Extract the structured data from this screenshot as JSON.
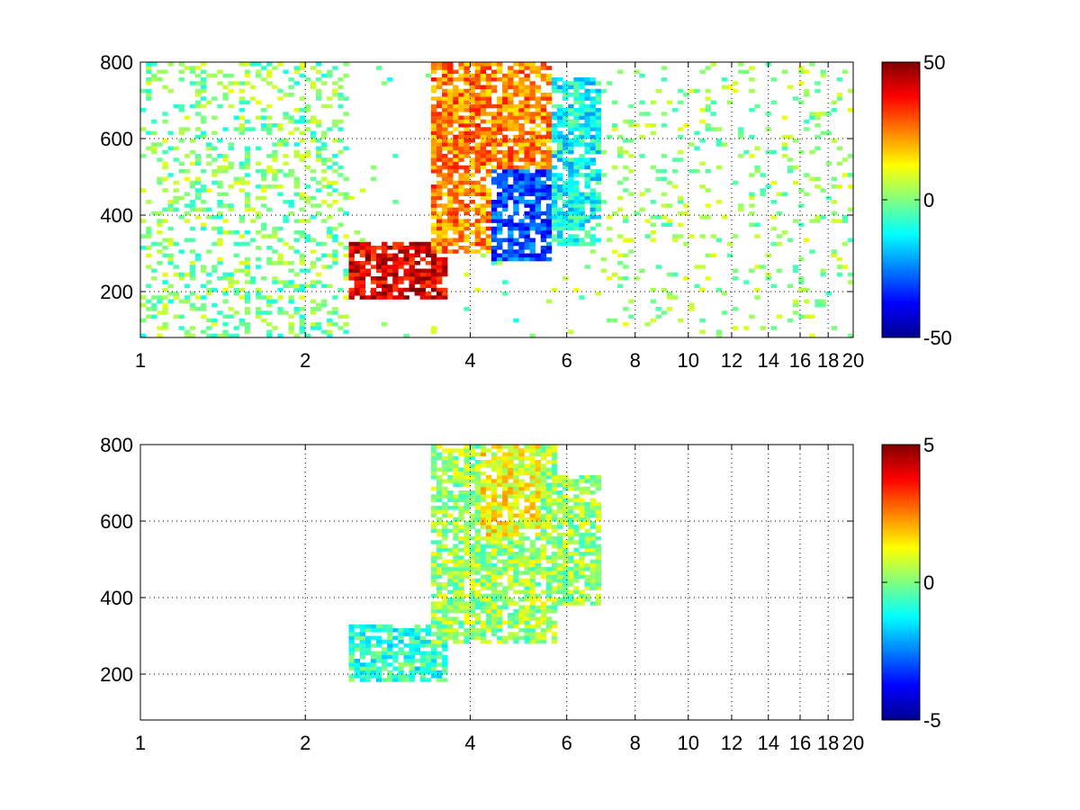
{
  "chart_data": [
    {
      "type": "heatmap",
      "title": "",
      "xlabel": "",
      "ylabel": "",
      "x_scale": "log",
      "xlim": [
        1,
        20
      ],
      "ylim": [
        80,
        800
      ],
      "x_ticks": [
        1,
        2,
        4,
        6,
        8,
        10,
        12,
        14,
        16,
        18,
        20
      ],
      "x_tick_labels": [
        "1",
        "2",
        "4",
        "6",
        "8",
        "10",
        "12",
        "14",
        "16",
        "18",
        "20"
      ],
      "y_ticks": [
        200,
        400,
        600,
        800
      ],
      "y_tick_labels": [
        "200",
        "400",
        "600",
        "800"
      ],
      "grid": true,
      "colormap": "jet",
      "clim": [
        -50,
        50
      ],
      "colorbar_ticks": [
        50,
        0,
        -50
      ],
      "colorbar_tick_labels": [
        "50",
        "0",
        "-50"
      ],
      "regions": [
        {
          "x": [
            2.4,
            3.6
          ],
          "y": [
            180,
            330
          ],
          "value": 40,
          "desc": "high band along lower ridge"
        },
        {
          "x": [
            3.4,
            5.6
          ],
          "y": [
            300,
            800
          ],
          "value": 25,
          "desc": "warm upper lobe"
        },
        {
          "x": [
            4.4,
            5.6
          ],
          "y": [
            280,
            520
          ],
          "value": -30,
          "desc": "cool core"
        },
        {
          "x": [
            5.6,
            7.0
          ],
          "y": [
            320,
            760
          ],
          "value": -12,
          "desc": "cyan fringe"
        },
        {
          "x": [
            7.0,
            20.0
          ],
          "y": [
            80,
            800
          ],
          "value": 2,
          "desc": "sparse scattered noise"
        }
      ]
    },
    {
      "type": "heatmap",
      "title": "",
      "xlabel": "",
      "ylabel": "",
      "x_scale": "log",
      "xlim": [
        1,
        20
      ],
      "ylim": [
        80,
        800
      ],
      "x_ticks": [
        1,
        2,
        4,
        6,
        8,
        10,
        12,
        14,
        16,
        18,
        20
      ],
      "x_tick_labels": [
        "1",
        "2",
        "4",
        "6",
        "8",
        "10",
        "12",
        "14",
        "16",
        "18",
        "20"
      ],
      "y_ticks": [
        200,
        400,
        600,
        800
      ],
      "y_tick_labels": [
        "200",
        "400",
        "600",
        "800"
      ],
      "grid": true,
      "colormap": "jet",
      "clim": [
        -5,
        5
      ],
      "colorbar_ticks": [
        5,
        0,
        -5
      ],
      "colorbar_tick_labels": [
        "5",
        "0",
        "-5"
      ],
      "regions": [
        {
          "x": [
            2.4,
            3.6
          ],
          "y": [
            180,
            330
          ],
          "value": -0.8,
          "desc": "lower ridge"
        },
        {
          "x": [
            3.4,
            5.8
          ],
          "y": [
            280,
            800
          ],
          "value": 0.3,
          "desc": "main lobe"
        },
        {
          "x": [
            4.2,
            5.4
          ],
          "y": [
            560,
            800
          ],
          "value": 1.2,
          "desc": "upper yellow patch"
        },
        {
          "x": [
            5.8,
            7.0
          ],
          "y": [
            380,
            720
          ],
          "value": 0.2,
          "desc": "right edge"
        }
      ]
    }
  ]
}
